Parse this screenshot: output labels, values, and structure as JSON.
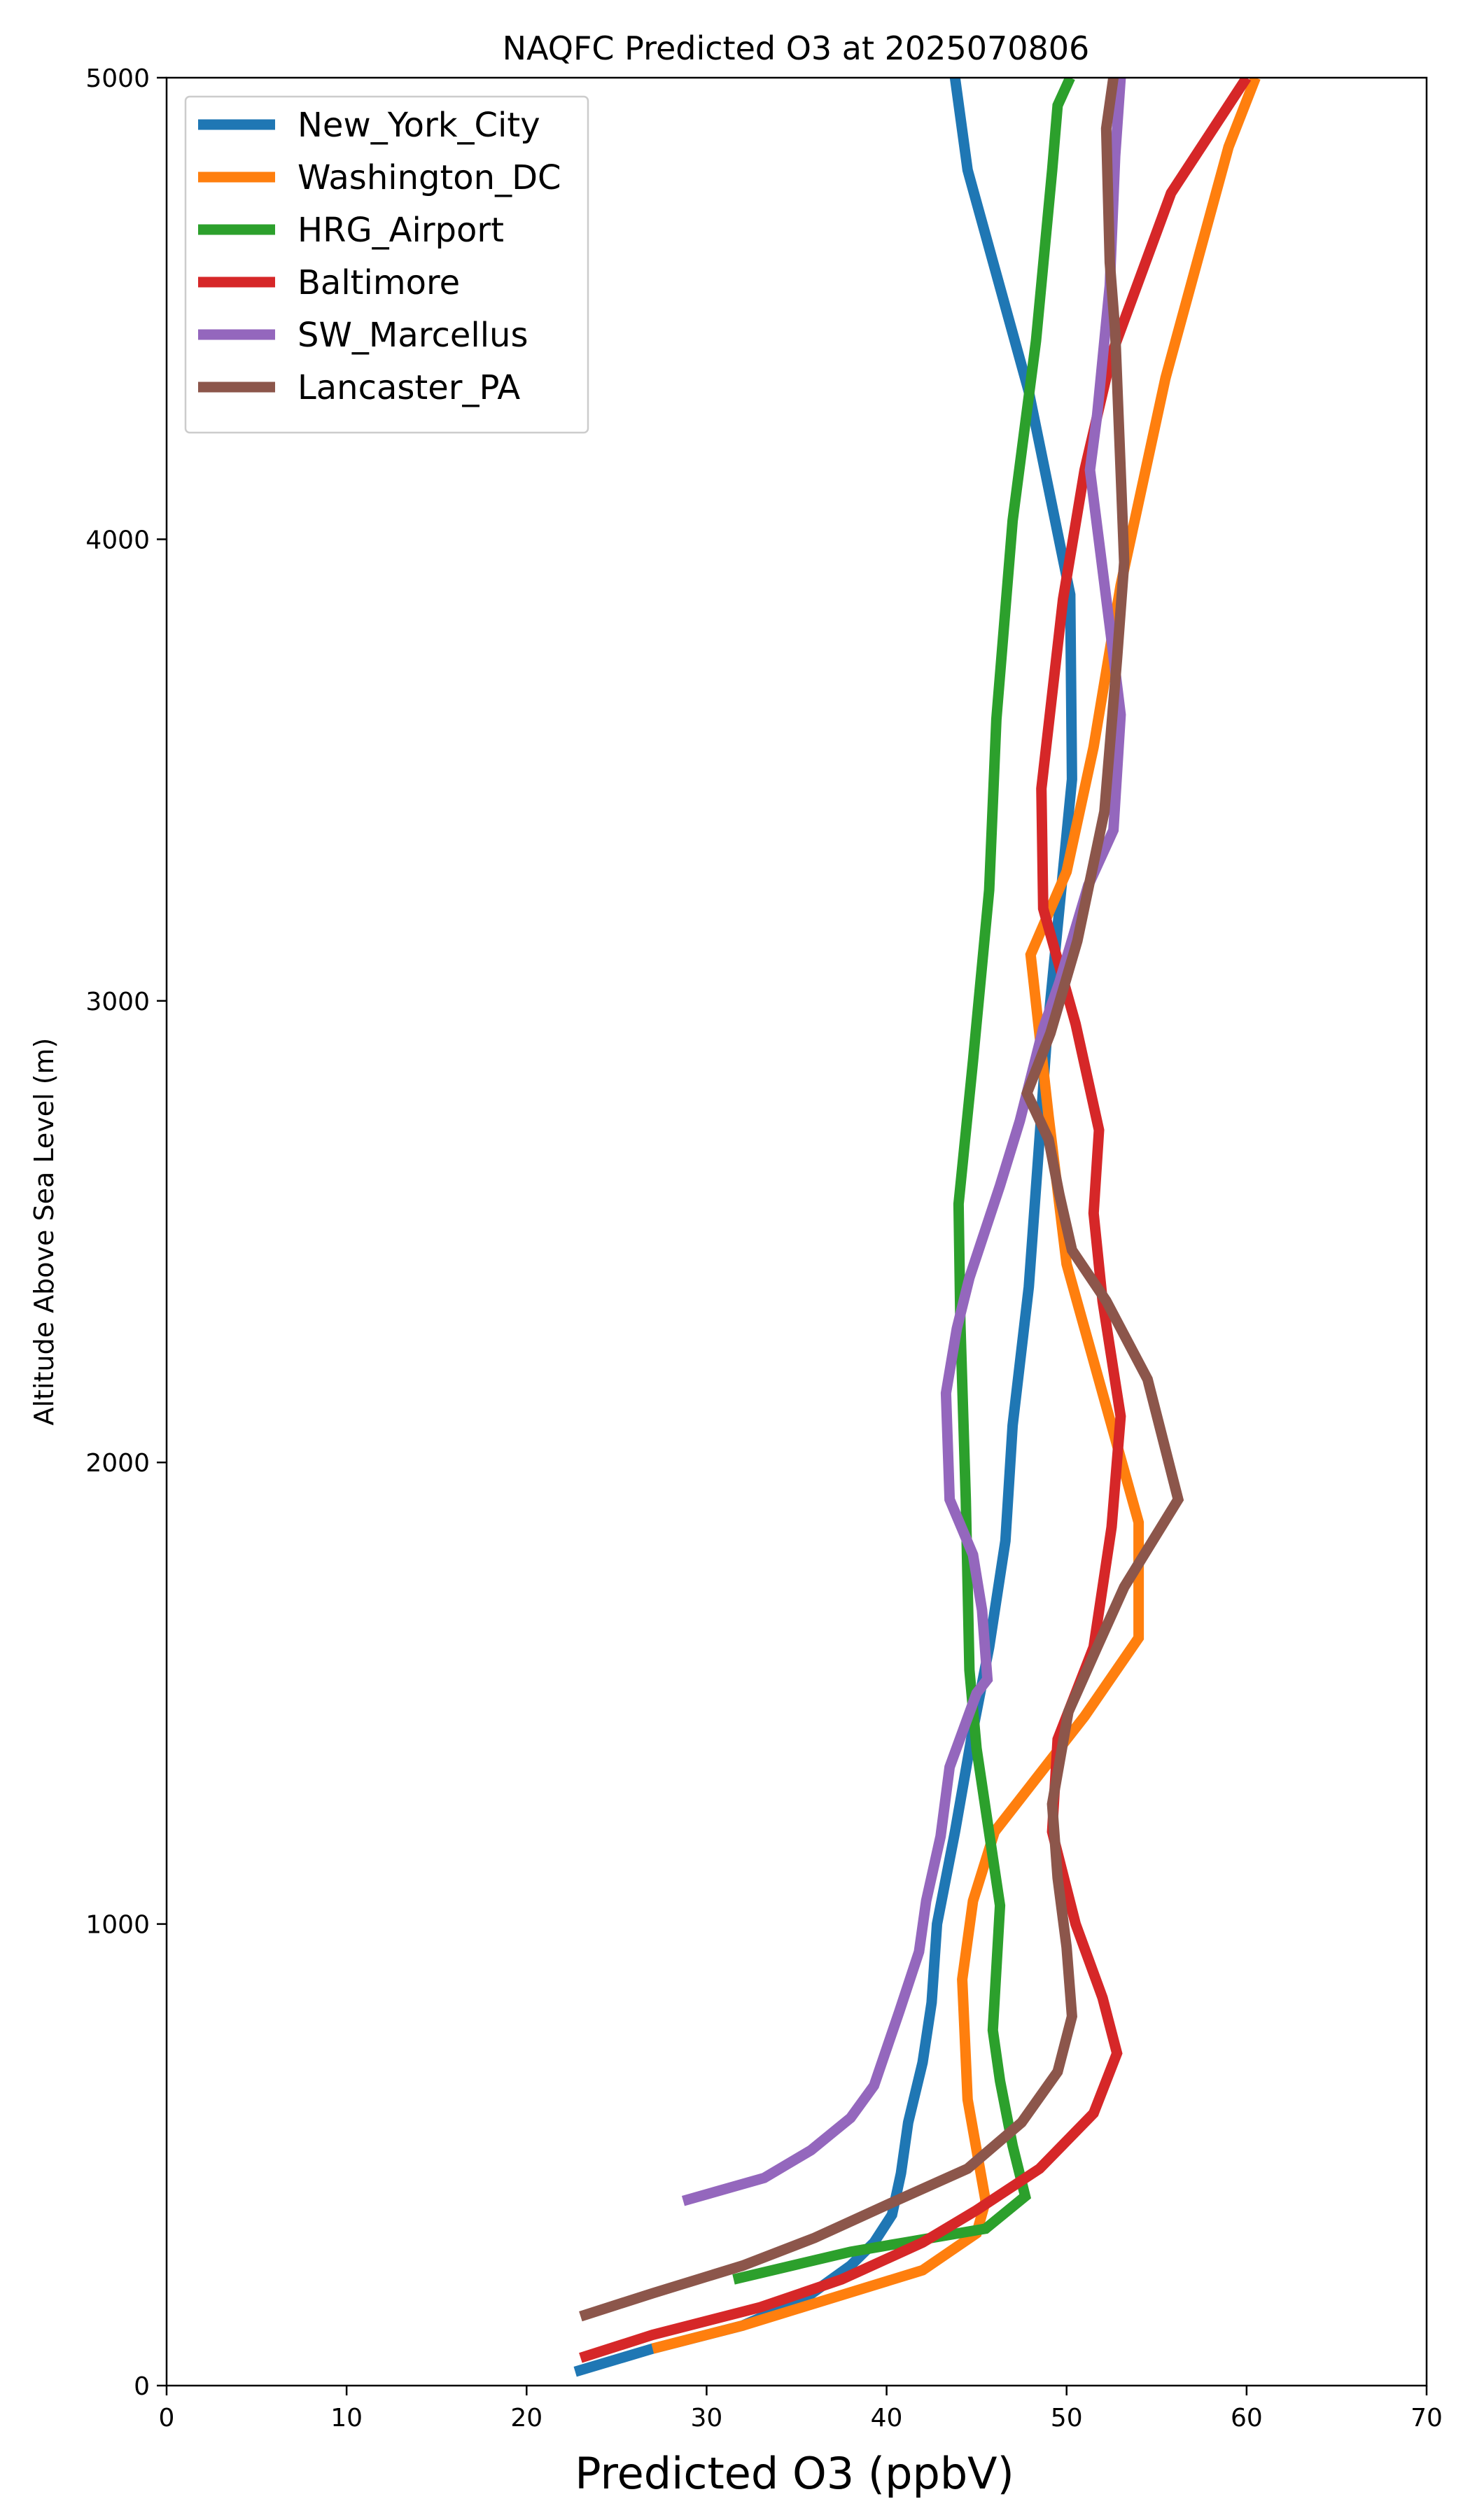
{
  "chart_data": {
    "type": "line",
    "title": "NAQFC Predicted O3 at 2025070806",
    "xlabel": "Predicted O3 (ppbV)",
    "ylabel": "Altitude Above Sea Level (m)",
    "xlim": [
      0,
      70
    ],
    "ylim": [
      0,
      5000
    ],
    "xticks": [
      "0",
      "10",
      "20",
      "30",
      "40",
      "50",
      "60",
      "70"
    ],
    "yticks": [
      "0",
      "1000",
      "2000",
      "3000",
      "4000",
      "5000"
    ],
    "xtick_values": [
      0,
      10,
      20,
      30,
      40,
      50,
      60,
      70
    ],
    "ytick_values": [
      0,
      1000,
      2000,
      3000,
      4000,
      5000
    ],
    "grid": false,
    "legend_position": "top-left",
    "series": [
      {
        "name": "New_York_City",
        "color": "#1f77b4",
        "points": [
          [
            22.7,
            30
          ],
          [
            27.0,
            80
          ],
          [
            32.0,
            130
          ],
          [
            35.5,
            190
          ],
          [
            38.0,
            260
          ],
          [
            39.3,
            310
          ],
          [
            40.3,
            370
          ],
          [
            40.8,
            460
          ],
          [
            41.2,
            570
          ],
          [
            42.0,
            700
          ],
          [
            42.5,
            830
          ],
          [
            42.8,
            1000
          ],
          [
            43.8,
            1200
          ],
          [
            44.7,
            1400
          ],
          [
            45.7,
            1600
          ],
          [
            46.6,
            1830
          ],
          [
            47.0,
            2080
          ],
          [
            47.9,
            2380
          ],
          [
            48.4,
            2650
          ],
          [
            48.9,
            2920
          ],
          [
            49.6,
            3200
          ],
          [
            50.3,
            3480
          ],
          [
            50.2,
            3880
          ],
          [
            47.9,
            4320
          ],
          [
            44.5,
            4800
          ],
          [
            43.8,
            5000
          ]
        ]
      },
      {
        "name": "Washington_DC",
        "color": "#ff7f0e",
        "points": [
          [
            27.0,
            80
          ],
          [
            32.0,
            130
          ],
          [
            37.0,
            190
          ],
          [
            42.0,
            250
          ],
          [
            45.0,
            330
          ],
          [
            45.5,
            400
          ],
          [
            44.5,
            620
          ],
          [
            44.2,
            880
          ],
          [
            44.8,
            1050
          ],
          [
            46.0,
            1200
          ],
          [
            48.0,
            1300
          ],
          [
            51.0,
            1450
          ],
          [
            54.0,
            1620
          ],
          [
            54.0,
            1870
          ],
          [
            52.0,
            2150
          ],
          [
            50.0,
            2430
          ],
          [
            49.0,
            2750
          ],
          [
            48.0,
            3100
          ],
          [
            50.0,
            3280
          ],
          [
            51.5,
            3550
          ],
          [
            53.0,
            3900
          ],
          [
            55.5,
            4350
          ],
          [
            59.0,
            4850
          ],
          [
            60.5,
            5000
          ]
        ]
      },
      {
        "name": "HRG_Airport",
        "color": "#2ca02c",
        "points": [
          [
            31.5,
            230
          ],
          [
            38.0,
            290
          ],
          [
            41.0,
            310
          ],
          [
            45.5,
            340
          ],
          [
            47.7,
            410
          ],
          [
            47.0,
            520
          ],
          [
            46.3,
            660
          ],
          [
            45.9,
            770
          ],
          [
            46.3,
            1040
          ],
          [
            45.0,
            1380
          ],
          [
            44.6,
            1550
          ],
          [
            44.4,
            1920
          ],
          [
            44.1,
            2300
          ],
          [
            44.0,
            2560
          ],
          [
            44.8,
            2870
          ],
          [
            45.7,
            3240
          ],
          [
            46.1,
            3610
          ],
          [
            47.0,
            4040
          ],
          [
            48.3,
            4430
          ],
          [
            49.2,
            4800
          ],
          [
            49.5,
            4940
          ],
          [
            50.2,
            5000
          ]
        ]
      },
      {
        "name": "Baltimore",
        "color": "#d62728",
        "points": [
          [
            23.0,
            60
          ],
          [
            27.0,
            110
          ],
          [
            33.0,
            170
          ],
          [
            37.5,
            230
          ],
          [
            42.0,
            310
          ],
          [
            45.0,
            380
          ],
          [
            48.5,
            470
          ],
          [
            51.5,
            590
          ],
          [
            52.8,
            720
          ],
          [
            52.0,
            840
          ],
          [
            50.5,
            1000
          ],
          [
            49.2,
            1200
          ],
          [
            49.5,
            1400
          ],
          [
            51.5,
            1600
          ],
          [
            52.5,
            1860
          ],
          [
            53.0,
            2100
          ],
          [
            52.0,
            2350
          ],
          [
            51.5,
            2540
          ],
          [
            51.8,
            2720
          ],
          [
            50.5,
            2950
          ],
          [
            48.7,
            3200
          ],
          [
            48.6,
            3460
          ],
          [
            49.8,
            3870
          ],
          [
            51.0,
            4150
          ],
          [
            52.5,
            4400
          ],
          [
            55.8,
            4750
          ],
          [
            60.0,
            5000
          ]
        ]
      },
      {
        "name": "SW_Marcellus",
        "color": "#9467bd",
        "points": [
          [
            28.7,
            400
          ],
          [
            33.2,
            450
          ],
          [
            35.8,
            510
          ],
          [
            38.0,
            580
          ],
          [
            39.3,
            650
          ],
          [
            40.7,
            810
          ],
          [
            41.8,
            940
          ],
          [
            42.2,
            1050
          ],
          [
            43.0,
            1190
          ],
          [
            43.5,
            1340
          ],
          [
            45.0,
            1500
          ],
          [
            45.6,
            1530
          ],
          [
            45.3,
            1680
          ],
          [
            44.8,
            1800
          ],
          [
            43.5,
            1920
          ],
          [
            43.3,
            2150
          ],
          [
            43.9,
            2290
          ],
          [
            44.6,
            2400
          ],
          [
            46.3,
            2600
          ],
          [
            47.4,
            2740
          ],
          [
            48.7,
            2940
          ],
          [
            49.6,
            3040
          ],
          [
            51.2,
            3250
          ],
          [
            52.6,
            3370
          ],
          [
            53.0,
            3620
          ],
          [
            52.5,
            3780
          ],
          [
            51.3,
            4150
          ],
          [
            51.7,
            4270
          ],
          [
            52.4,
            4550
          ],
          [
            52.7,
            4830
          ],
          [
            53.0,
            5000
          ]
        ]
      },
      {
        "name": "Lancaster_PA",
        "color": "#8c564b",
        "points": [
          [
            23.0,
            150
          ],
          [
            27.0,
            200
          ],
          [
            32.0,
            260
          ],
          [
            36.0,
            320
          ],
          [
            40.5,
            400
          ],
          [
            44.5,
            470
          ],
          [
            47.5,
            570
          ],
          [
            49.5,
            680
          ],
          [
            50.3,
            800
          ],
          [
            50.0,
            950
          ],
          [
            49.5,
            1100
          ],
          [
            49.2,
            1260
          ],
          [
            50.1,
            1460
          ],
          [
            51.7,
            1600
          ],
          [
            53.2,
            1730
          ],
          [
            56.2,
            1920
          ],
          [
            54.5,
            2180
          ],
          [
            52.2,
            2350
          ],
          [
            50.3,
            2460
          ],
          [
            49.6,
            2580
          ],
          [
            49.0,
            2700
          ],
          [
            47.8,
            2800
          ],
          [
            49.1,
            2930
          ],
          [
            50.6,
            3130
          ],
          [
            52.1,
            3410
          ],
          [
            52.8,
            3740
          ],
          [
            53.2,
            3950
          ],
          [
            53.0,
            4150
          ],
          [
            52.7,
            4450
          ],
          [
            52.4,
            4600
          ],
          [
            52.2,
            4890
          ],
          [
            52.6,
            5000
          ]
        ]
      }
    ]
  }
}
